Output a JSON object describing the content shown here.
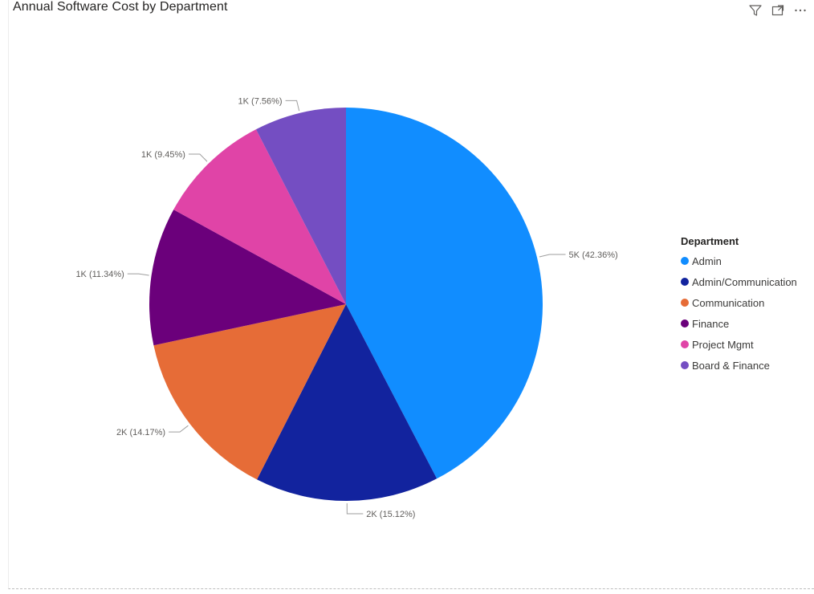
{
  "title": "Annual Software Cost by Department",
  "toolbar": {
    "icons": [
      "filter-icon",
      "focus-mode-icon",
      "more-options-icon"
    ]
  },
  "chart_data": {
    "type": "pie",
    "title": "Annual Software Cost by Department",
    "legend_title": "Department",
    "legend_position": "right",
    "slices": [
      {
        "label": "Admin",
        "percent": 42.36,
        "value_label": "5K",
        "color": "#118DFF"
      },
      {
        "label": "Admin/Communication",
        "percent": 15.12,
        "value_label": "2K",
        "color": "#12239E"
      },
      {
        "label": "Communication",
        "percent": 14.17,
        "value_label": "2K",
        "color": "#E66C37"
      },
      {
        "label": "Finance",
        "percent": 11.34,
        "value_label": "1K",
        "color": "#6B007B"
      },
      {
        "label": "Project Mgmt",
        "percent": 9.45,
        "value_label": "1K",
        "color": "#E044A7"
      },
      {
        "label": "Board & Finance",
        "percent": 7.56,
        "value_label": "1K",
        "color": "#744EC2"
      }
    ],
    "data_labels": [
      "5K (42.36%)",
      "2K (15.12%)",
      "2K (14.17%)",
      "1K (11.34%)",
      "1K (9.45%)",
      "1K (7.56%)"
    ]
  }
}
